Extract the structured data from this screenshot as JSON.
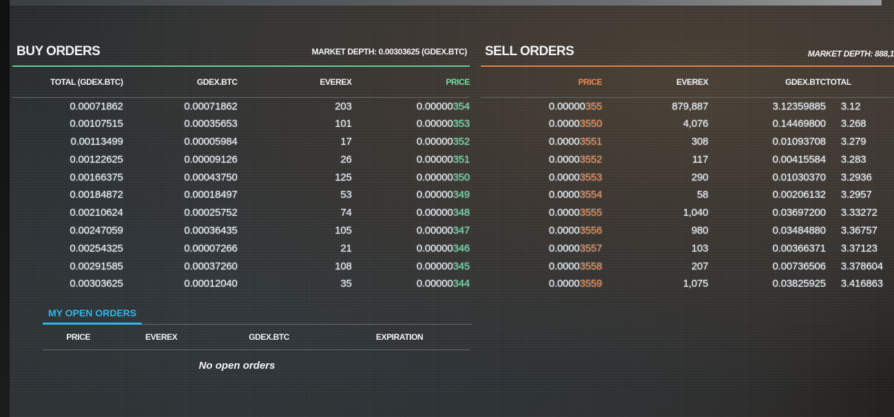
{
  "colors": {
    "buy": "#6ee0a0",
    "sell": "#f0894a",
    "tab": "#2bb8ee",
    "background": "#2a2b2c"
  },
  "buy": {
    "title": "BUY ORDERS",
    "depth": "MARKET DEPTH: 0.00303625 (GDEX.BTC)",
    "columns": [
      "TOTAL (GDEX.BTC)",
      "GDEX.BTC",
      "EVEREX",
      "PRICE"
    ],
    "rows": [
      [
        "0.00071862",
        "0.00071862",
        "203",
        "0.00000",
        "354"
      ],
      [
        "0.00107515",
        "0.00035653",
        "101",
        "0.00000",
        "353"
      ],
      [
        "0.00113499",
        "0.00005984",
        "17",
        "0.00000",
        "352"
      ],
      [
        "0.00122625",
        "0.00009126",
        "26",
        "0.00000",
        "351"
      ],
      [
        "0.00166375",
        "0.00043750",
        "125",
        "0.00000",
        "350"
      ],
      [
        "0.00184872",
        "0.00018497",
        "53",
        "0.00000",
        "349"
      ],
      [
        "0.00210624",
        "0.00025752",
        "74",
        "0.00000",
        "348"
      ],
      [
        "0.00247059",
        "0.00036435",
        "105",
        "0.00000",
        "347"
      ],
      [
        "0.00254325",
        "0.00007266",
        "21",
        "0.00000",
        "346"
      ],
      [
        "0.00291585",
        "0.00037260",
        "108",
        "0.00000",
        "345"
      ],
      [
        "0.00303625",
        "0.00012040",
        "35",
        "0.00000",
        "344"
      ]
    ]
  },
  "sell": {
    "title": "SELL ORDERS",
    "depth": "MARKET DEPTH: 888,1",
    "columns": [
      "PRICE",
      "EVEREX",
      "GDEX.BTC",
      "TOTAL"
    ],
    "rows": [
      [
        "0.00000",
        "355",
        "879,887",
        "3.12359885",
        "3.12"
      ],
      [
        "0.0000",
        "3550",
        "4,076",
        "0.14469800",
        "3.268"
      ],
      [
        "0.0000",
        "3551",
        "308",
        "0.01093708",
        "3.279"
      ],
      [
        "0.0000",
        "3552",
        "117",
        "0.00415584",
        "3.283"
      ],
      [
        "0.0000",
        "3553",
        "290",
        "0.01030370",
        "3.2936"
      ],
      [
        "0.0000",
        "3554",
        "58",
        "0.00206132",
        "3.2957"
      ],
      [
        "0.0000",
        "3555",
        "1,040",
        "0.03697200",
        "3.33272"
      ],
      [
        "0.0000",
        "3556",
        "980",
        "0.03484880",
        "3.36757"
      ],
      [
        "0.0000",
        "3557",
        "103",
        "0.00366371",
        "3.37123"
      ],
      [
        "0.0000",
        "3558",
        "207",
        "0.00736506",
        "3.378604"
      ],
      [
        "0.0000",
        "3559",
        "1,075",
        "0.03825925",
        "3.416863"
      ]
    ]
  },
  "open_orders": {
    "tab": "MY OPEN ORDERS",
    "columns": [
      "PRICE",
      "EVEREX",
      "GDEX.BTC",
      "EXPIRATION"
    ],
    "empty": "No open orders"
  }
}
